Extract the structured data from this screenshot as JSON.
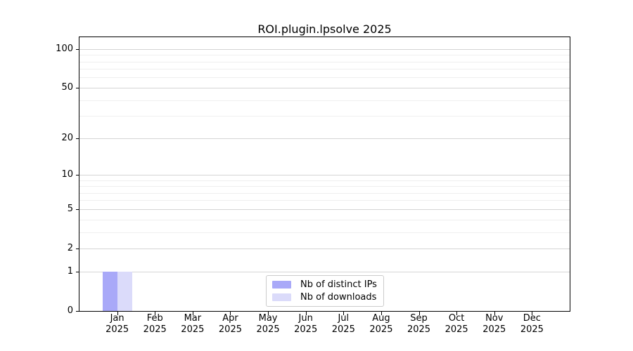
{
  "title": "ROI.plugin.lpsolve 2025",
  "colors": {
    "background": "#ffffff",
    "spine": "#000000",
    "grid_major": "#d4d4d4",
    "grid_minor": "#efefef",
    "legend_border": "#cccccc",
    "text": "#000000",
    "bar_distinct_ips": "#a9a9f8",
    "bar_downloads": "#dbdbfa"
  },
  "chart_data": {
    "type": "bar",
    "title": "ROI.plugin.lpsolve 2025",
    "xlabel": "",
    "ylabel": "",
    "yscale": "log1p",
    "ylim": [
      0,
      124
    ],
    "grid": true,
    "legend_position": "lower center",
    "y_major_ticks": [
      0,
      1,
      2,
      5,
      10,
      20,
      50,
      100
    ],
    "y_minor_ticks": [
      3,
      4,
      6,
      7,
      8,
      9,
      30,
      40,
      60,
      70,
      80,
      90
    ],
    "categories": [
      {
        "month": "Jan",
        "year": "2025"
      },
      {
        "month": "Feb",
        "year": "2025"
      },
      {
        "month": "Mar",
        "year": "2025"
      },
      {
        "month": "Apr",
        "year": "2025"
      },
      {
        "month": "May",
        "year": "2025"
      },
      {
        "month": "Jun",
        "year": "2025"
      },
      {
        "month": "Jul",
        "year": "2025"
      },
      {
        "month": "Aug",
        "year": "2025"
      },
      {
        "month": "Sep",
        "year": "2025"
      },
      {
        "month": "Oct",
        "year": "2025"
      },
      {
        "month": "Nov",
        "year": "2025"
      },
      {
        "month": "Dec",
        "year": "2025"
      }
    ],
    "series": [
      {
        "name": "Nb of distinct IPs",
        "color": "#a9a9f8",
        "values": [
          1,
          0,
          0,
          0,
          0,
          0,
          0,
          0,
          0,
          0,
          0,
          0
        ]
      },
      {
        "name": "Nb of downloads",
        "color": "#dbdbfa",
        "values": [
          1,
          0,
          0,
          0,
          0,
          0,
          0,
          0,
          0,
          0,
          0,
          0
        ]
      }
    ]
  }
}
